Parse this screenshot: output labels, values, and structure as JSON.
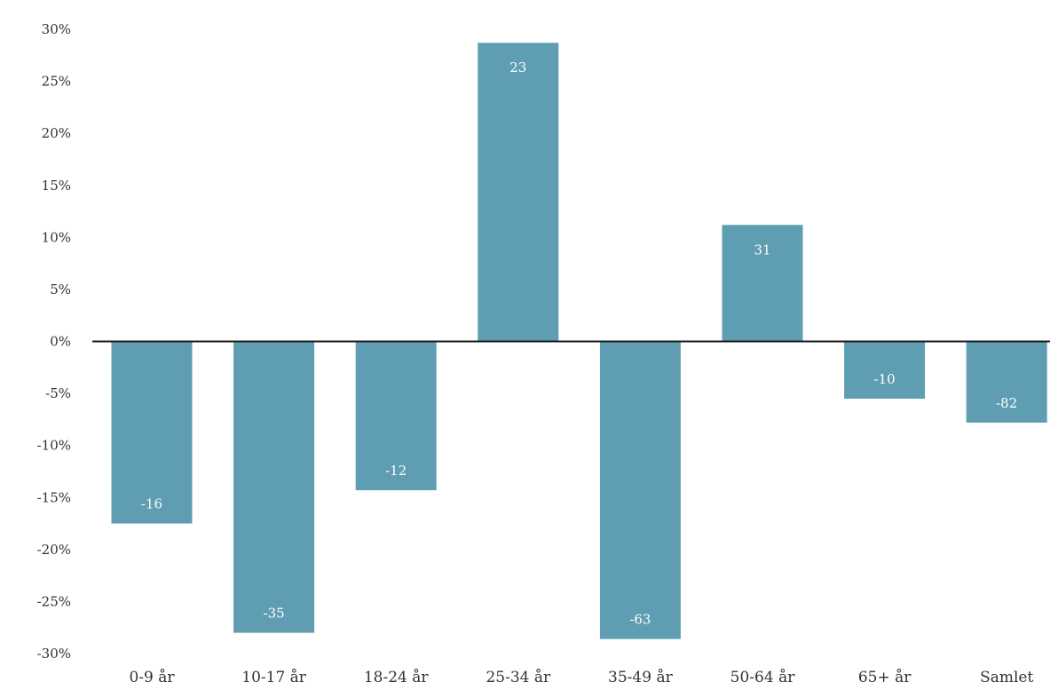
{
  "chart_data": {
    "type": "bar",
    "title": "",
    "xlabel": "",
    "ylabel": "",
    "ylim": [
      -30,
      30
    ],
    "y_ticks": [
      30,
      25,
      20,
      15,
      10,
      5,
      0,
      -5,
      -10,
      -15,
      -20,
      -25,
      -30
    ],
    "y_tick_suffix": "%",
    "grid": false,
    "legend": "none",
    "categories": [
      "0-9 år",
      "10-17 år",
      "18-24 år",
      "25-34 år",
      "35-49 år",
      "50-64 år",
      "65+ år",
      "Samlet"
    ],
    "series": [
      {
        "values": [
          -17.5,
          -28,
          -14.3,
          28.7,
          -28.6,
          11.2,
          -5.5,
          -7.8
        ],
        "data_labels": [
          "-16",
          "-35",
          "-12",
          "23",
          "-63",
          "31",
          "-10",
          "-82"
        ],
        "color": "#5f9db3"
      }
    ],
    "axis_color": "#1a1a1a",
    "text_color": "#333333",
    "data_label_color": "#ffffff"
  }
}
